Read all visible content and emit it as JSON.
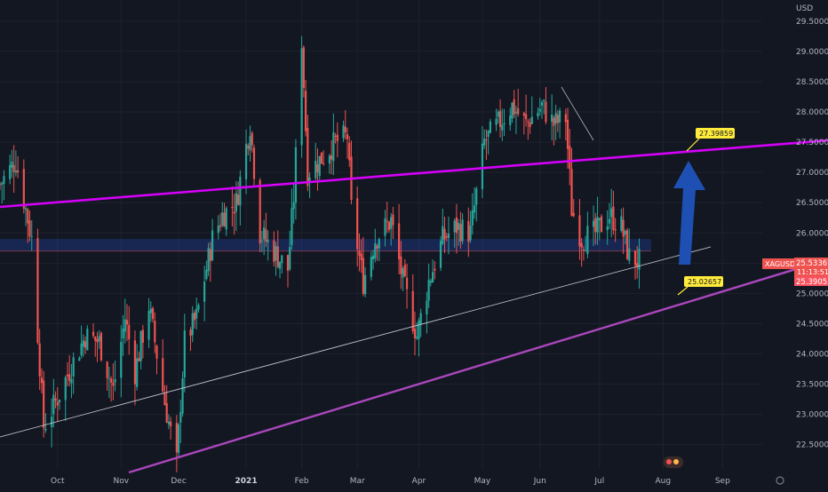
{
  "symbol": "XAGUSD",
  "currency": "USD",
  "price_current": "25.53367",
  "price_countdown": "11:13:51",
  "price_low_label": "25.39055",
  "target_label": "27.39859",
  "support_label": "25.02657",
  "colors": {
    "background": "#131722",
    "up": "#26a69a",
    "down": "#ef5350",
    "channel_upper": "#d500f9",
    "channel_lower": "#ab47bc",
    "thin_line": "#d1d4dc",
    "zone": "#2962ff",
    "arrow": "#1e50b4",
    "label_bg": "#ffeb3b",
    "price_tag": "#ef5350"
  },
  "chart_data": {
    "type": "candlestick",
    "yaxis": {
      "ticks": [
        "22.50000",
        "23.00000",
        "23.50000",
        "24.00000",
        "24.50000",
        "25.00000",
        "25.50000",
        "26.00000",
        "26.50000",
        "27.00000",
        "27.50000",
        "28.00000",
        "28.50000",
        "29.00000",
        "29.50000"
      ],
      "unit": "USD",
      "range": [
        22.1,
        29.85
      ]
    },
    "xaxis": {
      "ticks": [
        {
          "label": "Oct",
          "date": "2020-10-01",
          "bold": false
        },
        {
          "label": "Nov",
          "date": "2020-11-02",
          "bold": false
        },
        {
          "label": "Dec",
          "date": "2020-12-01",
          "bold": false
        },
        {
          "label": "2021",
          "date": "2021-01-04",
          "bold": true
        },
        {
          "label": "Feb",
          "date": "2021-02-01",
          "bold": false
        },
        {
          "label": "Mar",
          "date": "2021-03-01",
          "bold": false
        },
        {
          "label": "Apr",
          "date": "2021-04-01",
          "bold": false
        },
        {
          "label": "May",
          "date": "2021-05-03",
          "bold": false
        },
        {
          "label": "Jun",
          "date": "2021-06-01",
          "bold": false
        },
        {
          "label": "Jul",
          "date": "2021-07-01",
          "bold": false
        },
        {
          "label": "Aug",
          "date": "2021-08-02",
          "bold": false
        },
        {
          "label": "Sep",
          "date": "2021-09-01",
          "bold": false
        }
      ],
      "range": [
        "2020-09-02",
        "2021-09-21"
      ]
    },
    "zone": {
      "from": 25.7,
      "to": 25.9,
      "start": "2020-09-02",
      "end": "2021-07-27"
    },
    "path_points": [
      [
        "2020-09-02",
        26.8
      ],
      [
        "2020-09-10",
        27.2
      ],
      [
        "2020-09-18",
        25.9
      ],
      [
        "2020-09-24",
        22.8
      ],
      [
        "2020-09-30",
        23.2
      ],
      [
        "2020-10-08",
        23.8
      ],
      [
        "2020-10-15",
        24.3
      ],
      [
        "2020-10-22",
        24.2
      ],
      [
        "2020-10-29",
        23.4
      ],
      [
        "2020-11-04",
        24.6
      ],
      [
        "2020-11-09",
        23.7
      ],
      [
        "2020-11-16",
        24.8
      ],
      [
        "2020-11-24",
        23.2
      ],
      [
        "2020-11-30",
        22.2
      ],
      [
        "2020-12-04",
        24.2
      ],
      [
        "2020-12-10",
        24.6
      ],
      [
        "2020-12-18",
        25.9
      ],
      [
        "2020-12-23",
        26.3
      ],
      [
        "2020-12-30",
        26.5
      ],
      [
        "2021-01-06",
        27.8
      ],
      [
        "2021-01-11",
        26.0
      ],
      [
        "2021-01-18",
        25.7
      ],
      [
        "2021-01-25",
        25.4
      ],
      [
        "2021-01-28",
        26.6
      ],
      [
        "2021-02-01",
        29.2
      ],
      [
        "2021-02-04",
        27.0
      ],
      [
        "2021-02-10",
        27.2
      ],
      [
        "2021-02-18",
        27.5
      ],
      [
        "2021-02-24",
        27.6
      ],
      [
        "2021-02-26",
        26.4
      ],
      [
        "2021-03-04",
        25.2
      ],
      [
        "2021-03-10",
        25.9
      ],
      [
        "2021-03-18",
        26.2
      ],
      [
        "2021-03-24",
        25.2
      ],
      [
        "2021-03-31",
        24.3
      ],
      [
        "2021-04-06",
        25.2
      ],
      [
        "2021-04-13",
        25.9
      ],
      [
        "2021-04-20",
        26.1
      ],
      [
        "2021-04-27",
        26.0
      ],
      [
        "2021-05-04",
        27.5
      ],
      [
        "2021-05-11",
        27.8
      ],
      [
        "2021-05-18",
        28.1
      ],
      [
        "2021-05-25",
        27.8
      ],
      [
        "2021-06-02",
        28.1
      ],
      [
        "2021-06-08",
        27.8
      ],
      [
        "2021-06-14",
        27.9
      ],
      [
        "2021-06-17",
        26.4
      ],
      [
        "2021-06-22",
        25.9
      ],
      [
        "2021-06-29",
        26.0
      ],
      [
        "2021-07-06",
        26.3
      ],
      [
        "2021-07-12",
        26.1
      ],
      [
        "2021-07-16",
        25.6
      ],
      [
        "2021-07-21",
        25.53
      ]
    ]
  }
}
